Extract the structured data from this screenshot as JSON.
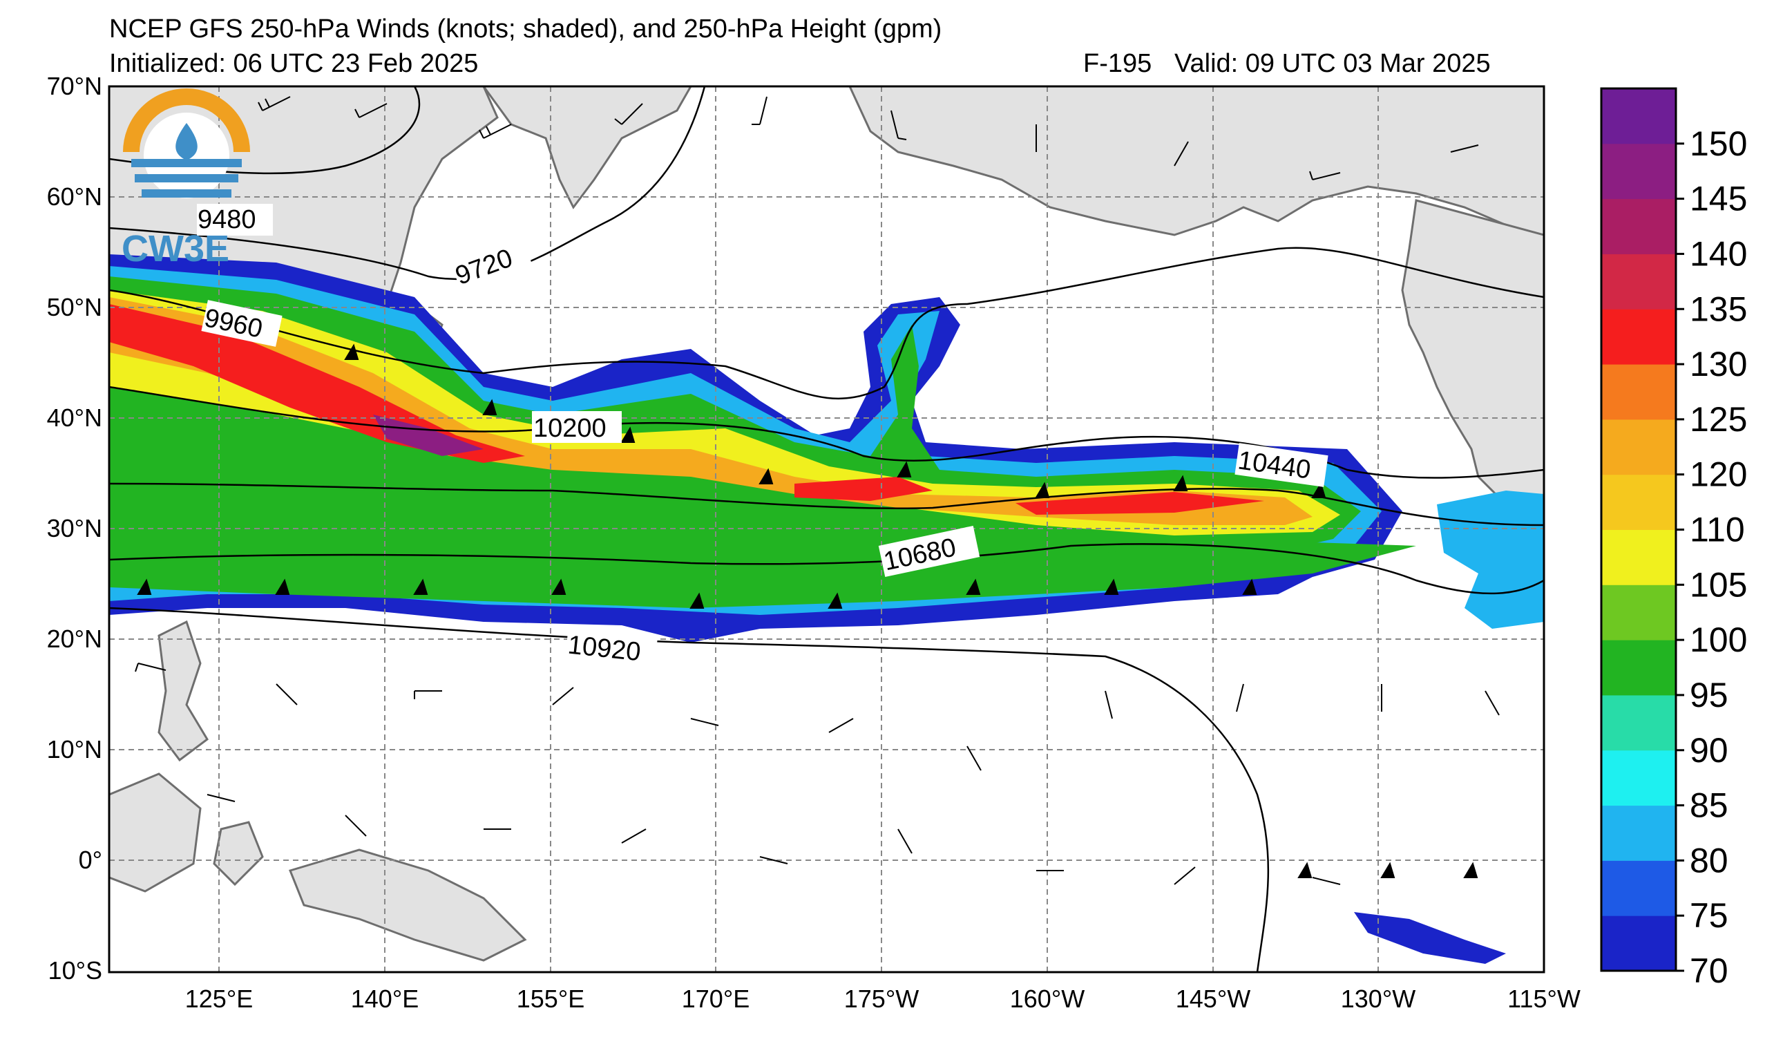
{
  "header": {
    "title": "NCEP GFS 250-hPa Winds (knots; shaded), and 250-hPa Height (gpm)",
    "initialized": "Initialized: 06 UTC 23 Feb 2025",
    "forecast_hour": "F-195",
    "valid": "Valid: 09 UTC 03 Mar 2025"
  },
  "logo": {
    "text": "CW3E",
    "colors": {
      "ring": "#f0a020",
      "drop": "#3f8fc8"
    }
  },
  "axes": {
    "lat_labels": [
      "70°N",
      "60°N",
      "50°N",
      "40°N",
      "30°N",
      "20°N",
      "10°N",
      "0°",
      "10°S"
    ],
    "lon_labels": [
      "125°E",
      "140°E",
      "155°E",
      "170°E",
      "175°W",
      "160°W",
      "145°W",
      "130°W",
      "115°W"
    ]
  },
  "contour_labels": [
    "9480",
    "9720",
    "9960",
    "10200",
    "10440",
    "10680",
    "10920"
  ],
  "colorbar": {
    "levels": [
      "70",
      "75",
      "80",
      "85",
      "90",
      "95",
      "100",
      "105",
      "110",
      "120",
      "125",
      "130",
      "135",
      "140",
      "145",
      "150"
    ],
    "colors": [
      "#1a24c8",
      "#1e5ae6",
      "#20b4f0",
      "#1ef0f0",
      "#28dca8",
      "#22b422",
      "#6ec822",
      "#f0f01e",
      "#f5c81e",
      "#f5aa1e",
      "#f57a1e",
      "#f51e1e",
      "#d22846",
      "#aa1e64",
      "#8c1e82",
      "#6e1e96"
    ]
  },
  "chart_data": {
    "type": "map",
    "variable_shaded": "250-hPa wind speed (knots)",
    "variable_contoured": "250-hPa geopotential height (gpm)",
    "lon_range": [
      "110°E",
      "115°W"
    ],
    "lat_range": [
      "10°S",
      "70°N"
    ],
    "shading_threshold": 70,
    "contour_values": [
      9480,
      9720,
      9960,
      10200,
      10440,
      10680,
      10920
    ],
    "grid": true
  }
}
